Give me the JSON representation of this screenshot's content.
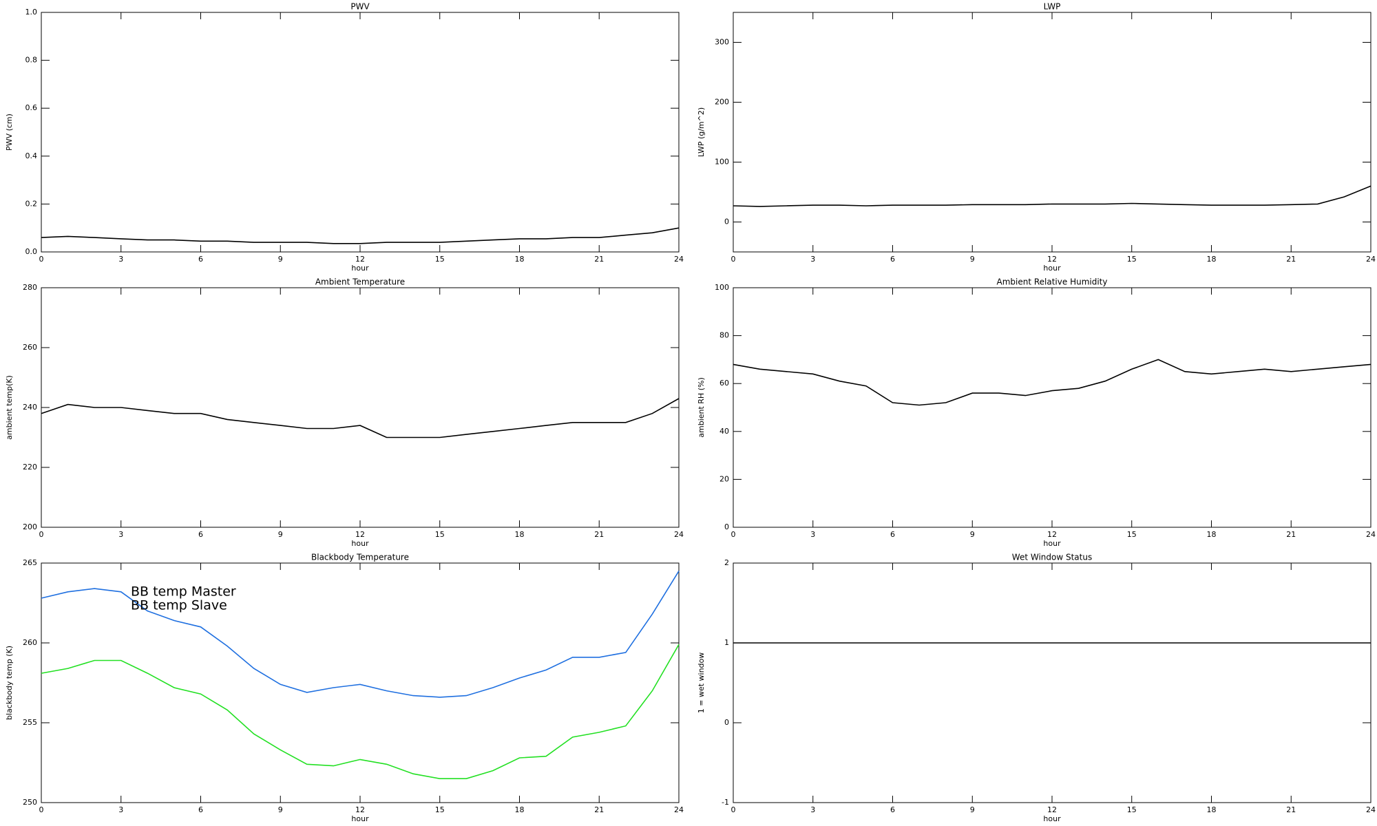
{
  "chart_data": [
    {
      "type": "line",
      "title": "PWV",
      "x_label": "hour",
      "y_label": "PWV (cm)",
      "x": [
        0,
        1,
        2,
        3,
        4,
        5,
        6,
        7,
        8,
        9,
        10,
        11,
        12,
        13,
        14,
        15,
        16,
        17,
        18,
        19,
        20,
        21,
        22,
        23,
        24
      ],
      "xlim": [
        0,
        24
      ],
      "xticks": [
        0,
        3,
        6,
        9,
        12,
        15,
        18,
        21,
        24
      ],
      "ylim": [
        0,
        1
      ],
      "yticks": [
        {
          "value": 0,
          "label": "0.0"
        },
        0.2,
        0.4,
        0.6,
        0.8,
        {
          "value": 1,
          "label": "1.0"
        }
      ],
      "series": [
        {
          "color": "#000000",
          "values": [
            0.06,
            0.065,
            0.06,
            0.055,
            0.05,
            0.05,
            0.045,
            0.045,
            0.04,
            0.04,
            0.04,
            0.035,
            0.035,
            0.04,
            0.04,
            0.04,
            0.045,
            0.05,
            0.055,
            0.055,
            0.06,
            0.06,
            0.07,
            0.08,
            0.1
          ]
        }
      ]
    },
    {
      "type": "line",
      "title": "LWP",
      "x_label": "hour",
      "y_label": "LWP (g/m^2)",
      "x": [
        0,
        1,
        2,
        3,
        4,
        5,
        6,
        7,
        8,
        9,
        10,
        11,
        12,
        13,
        14,
        15,
        16,
        17,
        18,
        19,
        20,
        21,
        22,
        23,
        24
      ],
      "xlim": [
        0,
        24
      ],
      "xticks": [
        0,
        3,
        6,
        9,
        12,
        15,
        18,
        21,
        24
      ],
      "ylim": [
        -50,
        350
      ],
      "yticks": [
        0,
        100,
        200,
        300
      ],
      "series": [
        {
          "color": "#000000",
          "values": [
            27,
            26,
            27,
            28,
            28,
            27,
            28,
            28,
            28,
            29,
            29,
            29,
            30,
            30,
            30,
            31,
            30,
            29,
            28,
            28,
            28,
            29,
            30,
            42,
            60
          ]
        }
      ]
    },
    {
      "type": "line",
      "title": "Ambient Temperature",
      "x_label": "hour",
      "y_label": "ambient temp(K)",
      "x": [
        0,
        1,
        2,
        3,
        4,
        5,
        6,
        7,
        8,
        9,
        10,
        11,
        12,
        13,
        14,
        15,
        16,
        17,
        18,
        19,
        20,
        21,
        22,
        23,
        24
      ],
      "xlim": [
        0,
        24
      ],
      "xticks": [
        0,
        3,
        6,
        9,
        12,
        15,
        18,
        21,
        24
      ],
      "ylim": [
        200,
        280
      ],
      "yticks": [
        200,
        220,
        240,
        260,
        280
      ],
      "series": [
        {
          "color": "#000000",
          "values": [
            238,
            241,
            240,
            240,
            239,
            238,
            238,
            236,
            235,
            234,
            233,
            233,
            234,
            230,
            230,
            230,
            231,
            232,
            233,
            234,
            235,
            235,
            235,
            238,
            243
          ]
        }
      ]
    },
    {
      "type": "line",
      "title": "Ambient Relative Humidity",
      "x_label": "hour",
      "y_label": "ambient RH (%)",
      "x": [
        0,
        1,
        2,
        3,
        4,
        5,
        6,
        7,
        8,
        9,
        10,
        11,
        12,
        13,
        14,
        15,
        16,
        17,
        18,
        19,
        20,
        21,
        22,
        23,
        24
      ],
      "xlim": [
        0,
        24
      ],
      "xticks": [
        0,
        3,
        6,
        9,
        12,
        15,
        18,
        21,
        24
      ],
      "ylim": [
        0,
        100
      ],
      "yticks": [
        0,
        20,
        40,
        60,
        80,
        100
      ],
      "series": [
        {
          "color": "#000000",
          "values": [
            68,
            66,
            65,
            64,
            61,
            59,
            52,
            51,
            52,
            56,
            56,
            55,
            57,
            58,
            61,
            66,
            70,
            65,
            64,
            65,
            66,
            65,
            66,
            67,
            68
          ]
        }
      ]
    },
    {
      "type": "line",
      "title": "Blackbody Temperature",
      "x_label": "hour",
      "y_label": "blackbody temp (K)",
      "x": [
        0,
        1,
        2,
        3,
        4,
        5,
        6,
        7,
        8,
        9,
        10,
        11,
        12,
        13,
        14,
        15,
        16,
        17,
        18,
        19,
        20,
        21,
        22,
        23,
        24
      ],
      "xlim": [
        0,
        24
      ],
      "xticks": [
        0,
        3,
        6,
        9,
        12,
        15,
        18,
        21,
        24
      ],
      "ylim": [
        250,
        265
      ],
      "yticks": [
        250,
        255,
        260,
        265
      ],
      "series": [
        {
          "name": "BB temp Master",
          "color": "#1e6fe0",
          "values": [
            262.8,
            263.2,
            263.4,
            263.2,
            262,
            261.4,
            261,
            259.8,
            258.4,
            257.4,
            256.9,
            257.2,
            257.4,
            257,
            256.7,
            256.6,
            256.7,
            257.2,
            257.8,
            258.3,
            259.1,
            259.1,
            259.4,
            261.8,
            264.5
          ]
        },
        {
          "name": "BB temp Slave",
          "color": "#22e022",
          "values": [
            258.1,
            258.4,
            258.9,
            258.9,
            258.1,
            257.2,
            256.8,
            255.8,
            254.3,
            253.3,
            252.4,
            252.3,
            252.7,
            252.4,
            251.8,
            251.5,
            251.5,
            252,
            252.8,
            252.9,
            254.1,
            254.4,
            254.8,
            257,
            259.9
          ]
        }
      ]
    },
    {
      "type": "line",
      "title": "Wet Window Status",
      "x_label": "hour",
      "y_label": "1 = wet window",
      "x": [
        0,
        24
      ],
      "xlim": [
        0,
        24
      ],
      "xticks": [
        0,
        3,
        6,
        9,
        12,
        15,
        18,
        21,
        24
      ],
      "ylim": [
        -1,
        2
      ],
      "yticks": [
        -1,
        0,
        1,
        2
      ],
      "series": [
        {
          "color": "#000000",
          "values": [
            1,
            1
          ]
        }
      ]
    }
  ]
}
